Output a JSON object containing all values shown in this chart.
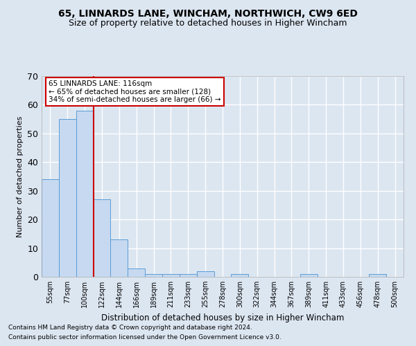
{
  "title1": "65, LINNARDS LANE, WINCHAM, NORTHWICH, CW9 6ED",
  "title2": "Size of property relative to detached houses in Higher Wincham",
  "xlabel": "Distribution of detached houses by size in Higher Wincham",
  "ylabel": "Number of detached properties",
  "footnote1": "Contains HM Land Registry data © Crown copyright and database right 2024.",
  "footnote2": "Contains public sector information licensed under the Open Government Licence v3.0.",
  "annotation_line1": "65 LINNARDS LANE: 116sqm",
  "annotation_line2": "← 65% of detached houses are smaller (128)",
  "annotation_line3": "34% of semi-detached houses are larger (66) →",
  "bar_labels": [
    "55sqm",
    "77sqm",
    "100sqm",
    "122sqm",
    "144sqm",
    "166sqm",
    "189sqm",
    "211sqm",
    "233sqm",
    "255sqm",
    "278sqm",
    "300sqm",
    "322sqm",
    "344sqm",
    "367sqm",
    "389sqm",
    "411sqm",
    "433sqm",
    "456sqm",
    "478sqm",
    "500sqm"
  ],
  "bar_values": [
    34,
    55,
    58,
    27,
    13,
    3,
    1,
    1,
    1,
    2,
    0,
    1,
    0,
    0,
    0,
    1,
    0,
    0,
    0,
    1,
    0
  ],
  "bar_color": "#c6d9f0",
  "bar_edge_color": "#5b9bd5",
  "property_line_x": 2.5,
  "property_line_color": "#cc0000",
  "ylim": [
    0,
    70
  ],
  "yticks": [
    0,
    10,
    20,
    30,
    40,
    50,
    60,
    70
  ],
  "background_color": "#dce6f1",
  "grid_color": "#ffffff",
  "annotation_box_color": "#ffffff",
  "annotation_box_edge": "#cc0000",
  "title1_fontsize": 10,
  "title2_fontsize": 9,
  "ylabel_fontsize": 8,
  "xlabel_fontsize": 8.5,
  "footnote_fontsize": 6.5,
  "tick_fontsize": 7,
  "annotation_fontsize": 7.5
}
